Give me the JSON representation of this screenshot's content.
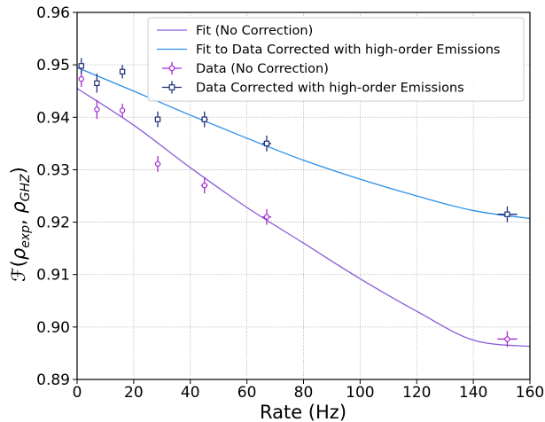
{
  "chart_data": {
    "type": "scatter",
    "title": "",
    "xlabel": "Rate (Hz)",
    "ylabel_parts": {
      "script_f": "ℱ",
      "open": "(",
      "rho1": "ρ",
      "sub1": "exp",
      "comma": ", ",
      "rho2": "ρ",
      "sub2": "GHZ",
      "close": ")"
    },
    "xlim": [
      0,
      160
    ],
    "ylim": [
      0.89,
      0.96
    ],
    "xticks": [
      0,
      20,
      40,
      60,
      80,
      100,
      120,
      140,
      160
    ],
    "xtick_labels": [
      "0",
      "20",
      "40",
      "60",
      "80",
      "100",
      "120",
      "140",
      "160"
    ],
    "yticks": [
      0.89,
      0.9,
      0.91,
      0.92,
      0.93,
      0.94,
      0.95,
      0.96
    ],
    "ytick_labels": [
      "0.89",
      "0.90",
      "0.91",
      "0.92",
      "0.93",
      "0.94",
      "0.95",
      "0.96"
    ],
    "grid": true,
    "legend_position": "top-right",
    "series": [
      {
        "name": "Data (No Correction)",
        "kind": "points",
        "color": "#a52ad1",
        "marker": "circle",
        "points": [
          {
            "x": 1.5,
            "y": 0.9473,
            "xerr": 0.6,
            "yerr": 0.0015
          },
          {
            "x": 7,
            "y": 0.9415,
            "xerr": 0.6,
            "yerr": 0.0018
          },
          {
            "x": 16,
            "y": 0.9413,
            "xerr": 0.8,
            "yerr": 0.0013
          },
          {
            "x": 28.5,
            "y": 0.9311,
            "xerr": 1.0,
            "yerr": 0.0015
          },
          {
            "x": 45,
            "y": 0.927,
            "xerr": 1.2,
            "yerr": 0.0015
          },
          {
            "x": 67,
            "y": 0.921,
            "xerr": 1.6,
            "yerr": 0.0015
          },
          {
            "x": 152,
            "y": 0.8977,
            "xerr": 3.5,
            "yerr": 0.0015
          }
        ]
      },
      {
        "name": "Data Corrected with high-order Emissions",
        "kind": "points",
        "color": "#1f2f7a",
        "marker": "square",
        "points": [
          {
            "x": 1.5,
            "y": 0.9498,
            "xerr": 0.6,
            "yerr": 0.0015
          },
          {
            "x": 7,
            "y": 0.9465,
            "xerr": 0.6,
            "yerr": 0.0018
          },
          {
            "x": 16,
            "y": 0.9487,
            "xerr": 0.8,
            "yerr": 0.0013
          },
          {
            "x": 28.5,
            "y": 0.9396,
            "xerr": 1.0,
            "yerr": 0.0015
          },
          {
            "x": 45,
            "y": 0.9396,
            "xerr": 1.2,
            "yerr": 0.0015
          },
          {
            "x": 67,
            "y": 0.935,
            "xerr": 1.6,
            "yerr": 0.0015
          },
          {
            "x": 152,
            "y": 0.9215,
            "xerr": 3.5,
            "yerr": 0.0015
          }
        ]
      },
      {
        "name": "Fit (No Correction)",
        "kind": "line",
        "color": "#8a5bd6",
        "x": [
          0,
          20,
          40,
          60,
          80,
          100,
          120,
          140,
          160
        ],
        "y": [
          0.9455,
          0.9385,
          0.9304,
          0.9228,
          0.916,
          0.9092,
          0.903,
          0.8975,
          0.8963
        ]
      },
      {
        "name": "Fit to Data Corrected with high-order Emissions",
        "kind": "line",
        "color": "#2b8fe6",
        "x": [
          0,
          20,
          40,
          60,
          80,
          100,
          120,
          140,
          160
        ],
        "y": [
          0.9495,
          0.945,
          0.9404,
          0.936,
          0.9318,
          0.9282,
          0.925,
          0.9222,
          0.9207
        ]
      }
    ],
    "legend_order": [
      "Fit (No Correction)",
      "Fit to Data Corrected with high-order Emissions",
      "Data (No Correction)",
      "Data Corrected with high-order Emissions"
    ]
  }
}
